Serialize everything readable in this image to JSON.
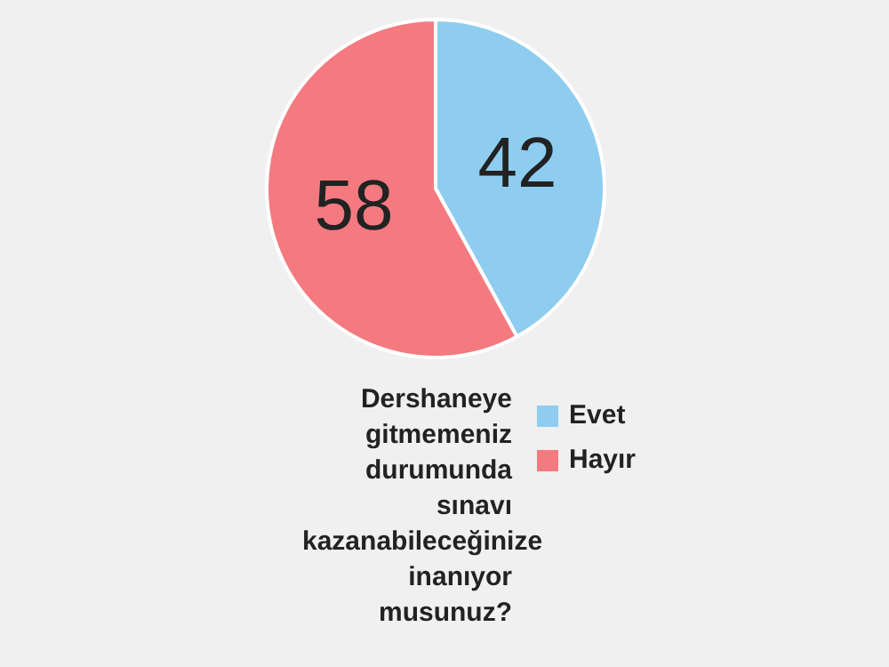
{
  "chart_data": {
    "type": "pie",
    "title": "Dershaneye gitmemeniz durumunda sınavı kazanabileceğinize inanıyor musunuz?",
    "categories": [
      "Evet",
      "Hayır"
    ],
    "values": [
      42,
      58
    ],
    "colors": [
      "#8ecdf0",
      "#f47a80"
    ],
    "data_labels": true,
    "legend": "bottom"
  }
}
